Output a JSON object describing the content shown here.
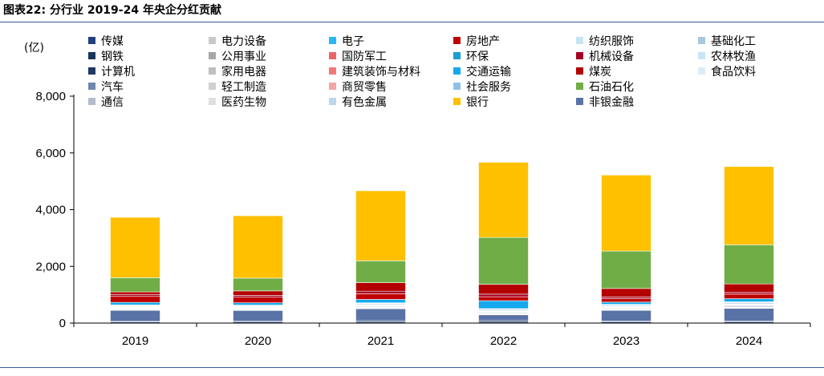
{
  "figure_title": "图表22:  分行业 2019-24 年央企分红贡献",
  "chart_data": {
    "type": "bar",
    "stacked": true,
    "unit_label": "(亿)",
    "categories": [
      "2019",
      "2020",
      "2021",
      "2022",
      "2023",
      "2024"
    ],
    "ylim": [
      0,
      8000
    ],
    "yticks": [
      0,
      2000,
      4000,
      6000,
      8000
    ],
    "ytick_labels": [
      "0",
      "2,000",
      "4,000",
      "6,000",
      "8,000"
    ],
    "legend_position": "top",
    "series": [
      {
        "name": "传媒",
        "color": "#1f3f7f",
        "values": [
          40,
          40,
          40,
          40,
          40,
          40
        ]
      },
      {
        "name": "钢铁",
        "color": "#17365d",
        "values": [
          20,
          25,
          45,
          50,
          30,
          30
        ]
      },
      {
        "name": "计算机",
        "color": "#203864",
        "values": [
          15,
          15,
          20,
          20,
          20,
          25
        ]
      },
      {
        "name": "汽车",
        "color": "#6f86ad",
        "values": [
          15,
          15,
          20,
          20,
          20,
          25
        ]
      },
      {
        "name": "通信",
        "color": "#b4bccb",
        "values": [
          15,
          15,
          15,
          15,
          15,
          15
        ]
      },
      {
        "name": "电力设备",
        "color": "#c9c9c9",
        "values": [
          10,
          10,
          10,
          10,
          10,
          10
        ]
      },
      {
        "name": "公用事业",
        "color": "#a6a6a6",
        "values": [
          10,
          10,
          10,
          10,
          10,
          10
        ]
      },
      {
        "name": "家用电器",
        "color": "#bfbfbf",
        "values": [
          10,
          10,
          10,
          10,
          10,
          10
        ]
      },
      {
        "name": "轻工制造",
        "color": "#d0d0d0",
        "values": [
          5,
          5,
          5,
          5,
          5,
          5
        ]
      },
      {
        "name": "医药生物",
        "color": "#e0e0e0",
        "values": [
          10,
          10,
          10,
          10,
          10,
          10
        ]
      },
      {
        "name": "电子",
        "color": "#29b6f6",
        "values": [
          10,
          10,
          10,
          10,
          10,
          10
        ]
      },
      {
        "name": "国防军工",
        "color": "#ed6468",
        "values": [
          10,
          10,
          10,
          10,
          10,
          10
        ]
      },
      {
        "name": "建筑装饰与材料",
        "color": "#f2787a",
        "values": [
          10,
          10,
          10,
          10,
          10,
          10
        ]
      },
      {
        "name": "商贸零售",
        "color": "#f6a5a5",
        "values": [
          5,
          5,
          5,
          5,
          5,
          5
        ]
      },
      {
        "name": "有色金属",
        "color": "#bcd7ee",
        "values": [
          10,
          10,
          10,
          10,
          10,
          10
        ]
      },
      {
        "name": "房地产",
        "color": "#c00000",
        "values": [
          210,
          200,
          200,
          140,
          120,
          160
        ]
      },
      {
        "name": "环保",
        "color": "#1a9fd4",
        "values": [
          5,
          5,
          5,
          5,
          5,
          5
        ]
      },
      {
        "name": "交通运输",
        "color": "#16a9ec",
        "values": [
          90,
          80,
          120,
          280,
          80,
          110
        ]
      },
      {
        "name": "社会服务",
        "color": "#8fc1e6",
        "values": [
          5,
          5,
          5,
          5,
          5,
          5
        ]
      },
      {
        "name": "银行",
        "color": "#ffc000",
        "values": [
          2130,
          2200,
          2470,
          2650,
          2680,
          2760
        ]
      },
      {
        "name": "纺织服饰",
        "color": "#c6e4f2",
        "values": [
          5,
          5,
          5,
          5,
          5,
          5
        ]
      },
      {
        "name": "机械设备",
        "color": "#a50021",
        "values": [
          60,
          60,
          90,
          90,
          60,
          60
        ]
      },
      {
        "name": "煤炭",
        "color": "#b30000",
        "values": [
          100,
          160,
          300,
          350,
          300,
          300
        ]
      },
      {
        "name": "石油石化",
        "color": "#70ad47",
        "values": [
          500,
          450,
          770,
          1650,
          1320,
          1380
        ]
      },
      {
        "name": "非银金融",
        "color": "#5a73a6",
        "values": [
          390,
          380,
          420,
          200,
          380,
          450
        ]
      },
      {
        "name": "基础化工",
        "color": "#a9c7dd",
        "values": [
          30,
          30,
          40,
          50,
          40,
          50
        ]
      },
      {
        "name": "农林牧渔",
        "color": "#c8e6f4",
        "values": [
          5,
          5,
          5,
          5,
          5,
          5
        ]
      },
      {
        "name": "食品饮料",
        "color": "#dcecf7",
        "values": [
          5,
          5,
          5,
          5,
          5,
          5
        ]
      }
    ],
    "stack_order": [
      "传媒",
      "钢铁",
      "非银金融",
      "通信",
      "电力设备",
      "公用事业",
      "家用电器",
      "轻工制造",
      "医药生物",
      "计算机",
      "汽车",
      "国防军工",
      "建筑装饰与材料",
      "商贸零售",
      "有色金属",
      "纺织服饰",
      "环保",
      "社会服务",
      "基础化工",
      "农林牧渔",
      "食品饮料",
      "电子",
      "交通运输",
      "房地产",
      "机械设备",
      "煤炭",
      "石油石化",
      "银行"
    ]
  }
}
